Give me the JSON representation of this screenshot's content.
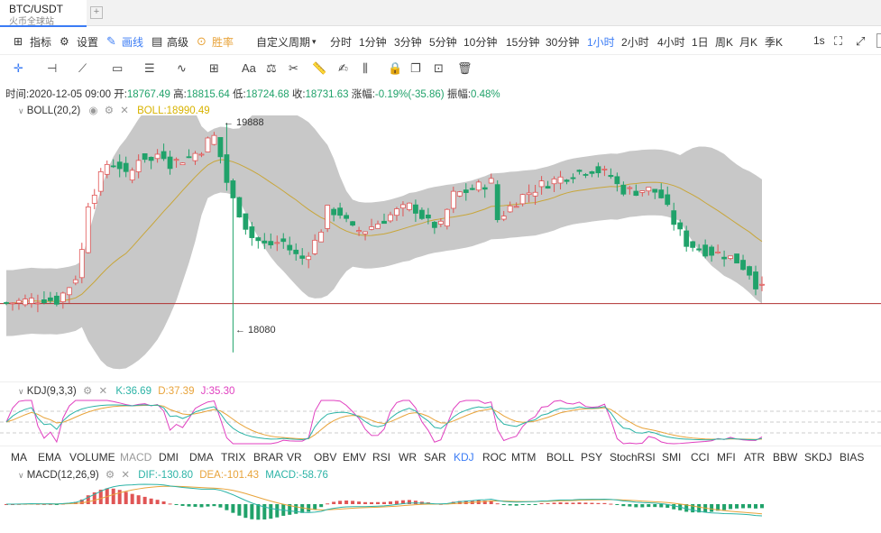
{
  "tab": {
    "title": "BTC/USDT",
    "subtitle": "火币全球站",
    "add_label": "+"
  },
  "toolbar": {
    "indicators": "指标",
    "settings": "设置",
    "draw": "画线",
    "advanced": "高级",
    "win": "胜率",
    "custom_period": "自定义周期",
    "periods": [
      "分时",
      "1分钟",
      "3分钟",
      "5分钟",
      "10分钟",
      "15分钟",
      "30分钟",
      "1小时",
      "2小时",
      "4小时",
      "1日",
      "周K",
      "月K",
      "季K"
    ],
    "active_period": "1小时",
    "refresh": "1s"
  },
  "drawtools": [
    "cursor",
    "horizontal-line",
    "trend-line",
    "rectangle",
    "channel",
    "wave",
    "grid",
    "Aa",
    "fib",
    "ruler",
    "pen",
    "pattern",
    "lock",
    "copy",
    "screenshot",
    "trash"
  ],
  "info": {
    "time": "时间:2020-12-05 09:00",
    "open_label": "开:",
    "open": "18767.49",
    "high_label": "高:",
    "high": "18815.64",
    "low_label": "低:",
    "low": "18724.68",
    "close_label": "收:",
    "close": "18731.63",
    "change_label": "涨幅:",
    "change": "-0.19%(-35.86)",
    "amp_label": "振幅:",
    "amp": "0.48%"
  },
  "boll": {
    "title": "BOLL(20,2)",
    "value": "BOLL:18990.49",
    "high_mark": "← 19888",
    "low_mark": "← 18080"
  },
  "kdj": {
    "title": "KDJ(9,3,3)",
    "k": "K:36.69",
    "d": "D:37.39",
    "j": "J:35.30"
  },
  "macd": {
    "title": "MACD(12,26,9)",
    "dif": "DIF:-130.80",
    "dea": "DEA:-101.43",
    "macd": "MACD:-58.76"
  },
  "indicator_tabs": [
    "MA",
    "EMA",
    "VOLUME",
    "MACD",
    "DMI",
    "DMA",
    "TRIX",
    "BRAR",
    "VR",
    "OBV",
    "EMV",
    "RSI",
    "WR",
    "SAR",
    "KDJ",
    "ROC",
    "MTM",
    "BOLL",
    "PSY",
    "StochRSI",
    "SMI",
    "CCI",
    "MFI",
    "ATR",
    "BBW",
    "SKDJ",
    "BIAS"
  ],
  "indicator_tabs_dim": [
    "MACD"
  ],
  "indicator_tabs_selected": [
    "KDJ"
  ],
  "colors": {
    "up": "#e05555",
    "down": "#20a26a",
    "band": "#c8c8c8",
    "mid": "#c8a63a",
    "accent": "#3b7cf5",
    "k": "#2bb3a6",
    "d": "#e8a33a",
    "j": "#e040c0"
  },
  "chart_data": {
    "type": "candlestick",
    "price_range": [
      17850,
      19950
    ],
    "hline": 18465,
    "candles": [],
    "kdj": {
      "k": [],
      "d": [],
      "j": []
    },
    "macd": {
      "dif": [],
      "dea": [],
      "hist": []
    }
  }
}
